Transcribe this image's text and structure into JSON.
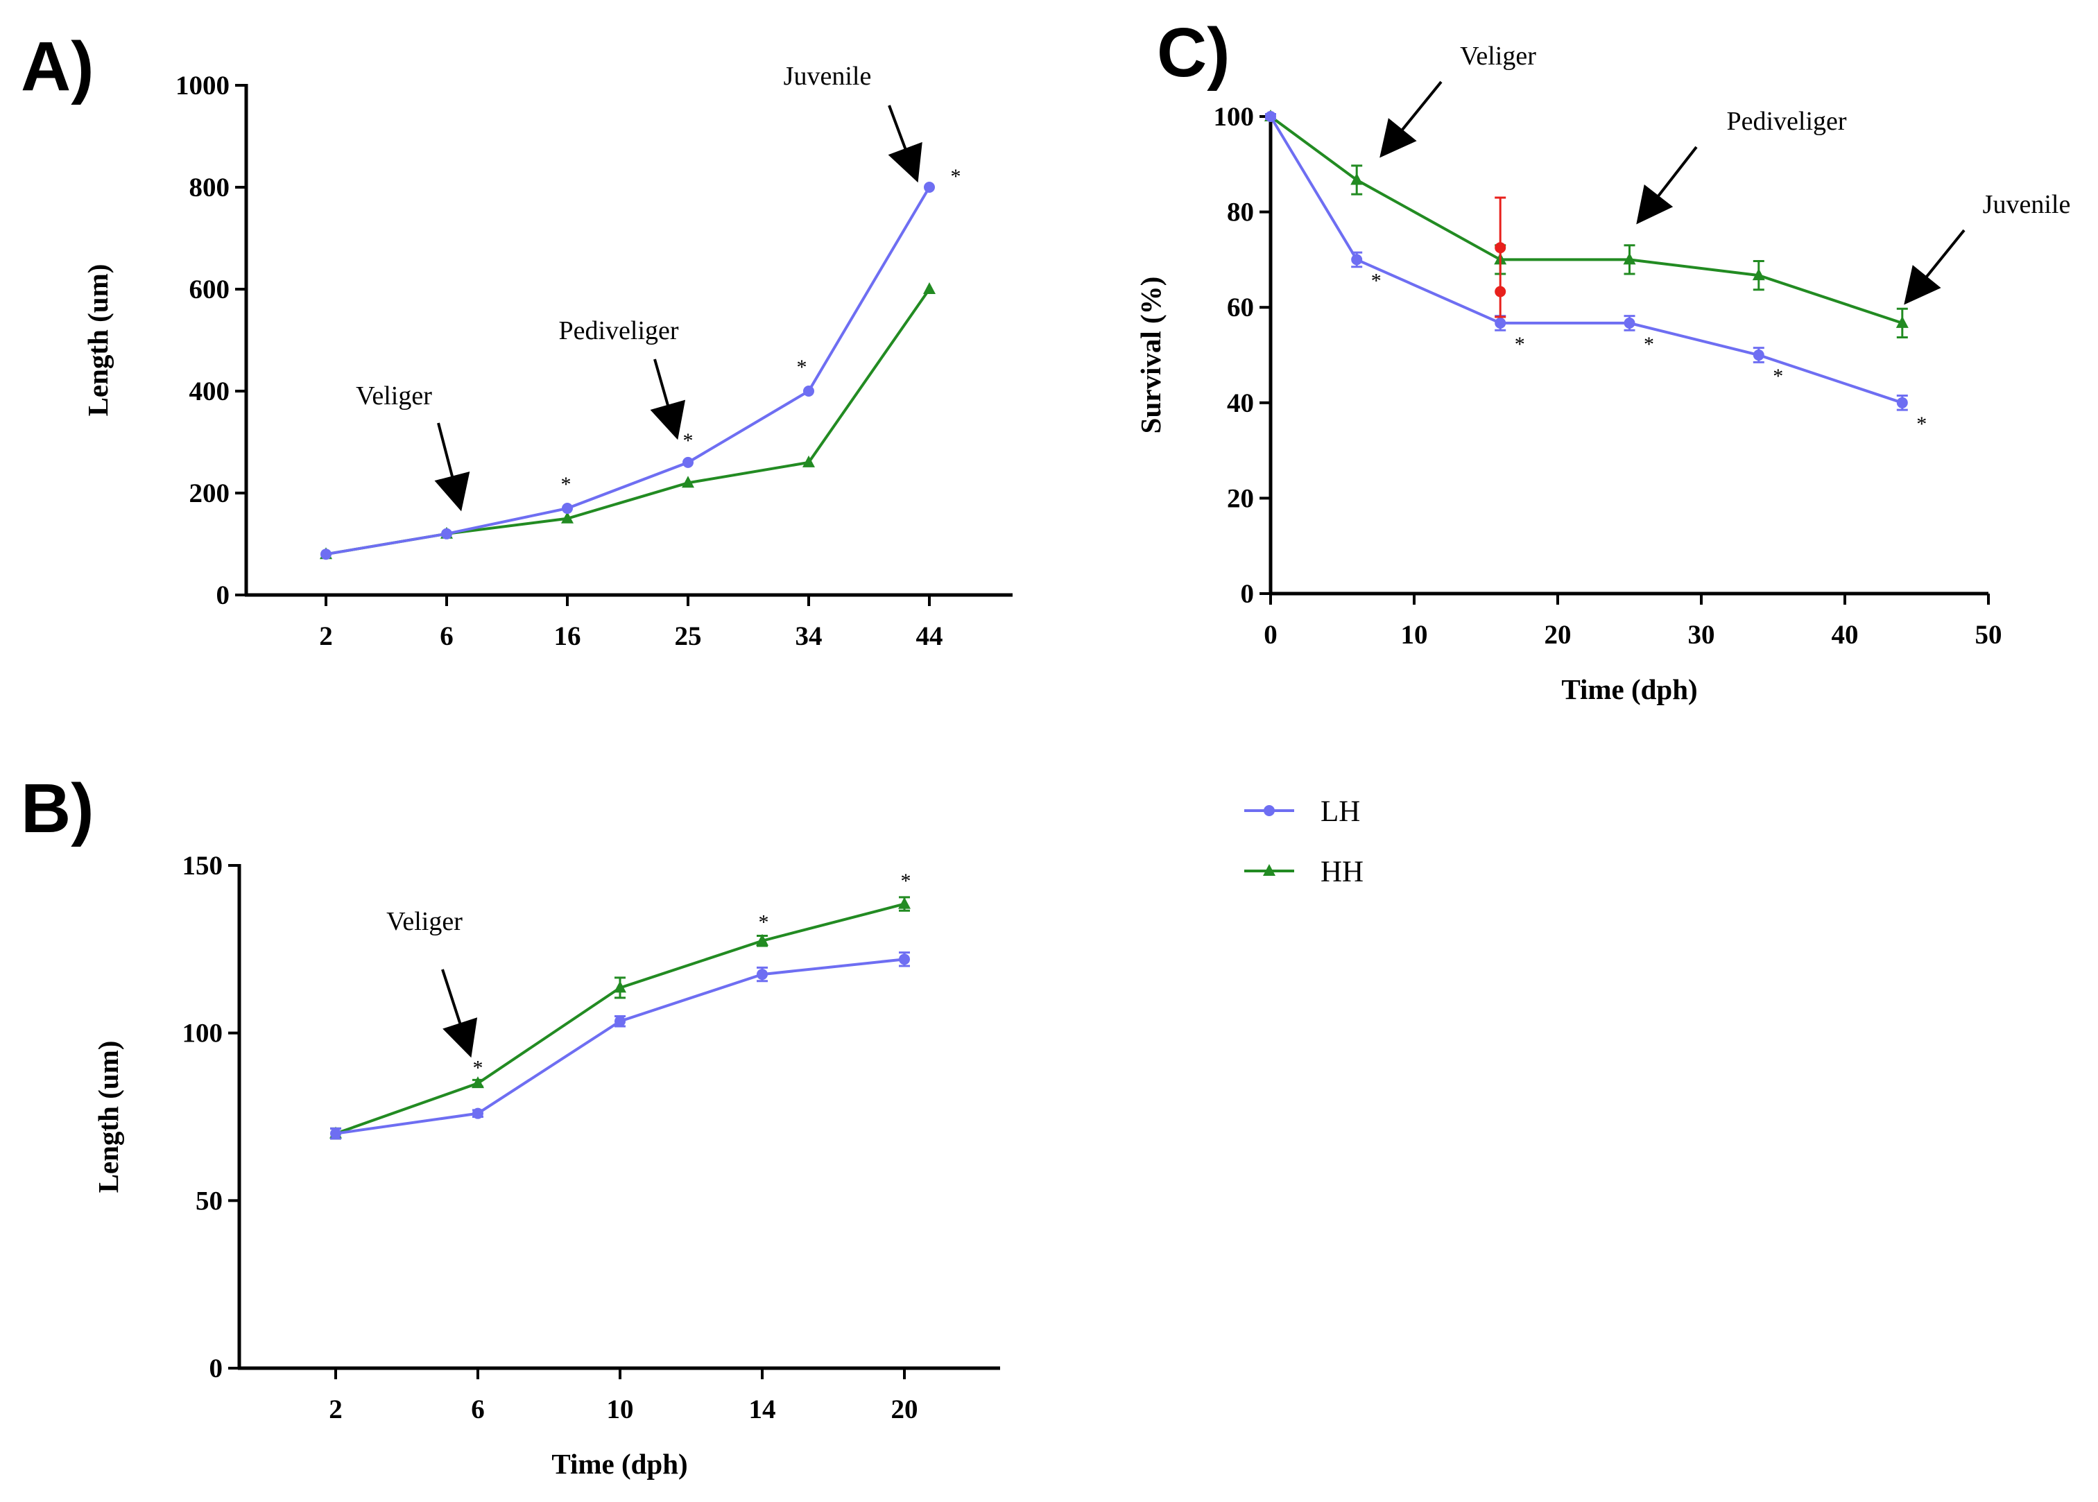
{
  "chart_data": [
    {
      "panel": "A)",
      "type": "line",
      "xlabel": "",
      "ylabel": "Length (um)",
      "categories": [
        "2",
        "6",
        "16",
        "25",
        "34",
        "44"
      ],
      "ylim": [
        0,
        1000
      ],
      "yticks": [
        0,
        200,
        400,
        600,
        800,
        1000
      ],
      "series": [
        {
          "name": "LH",
          "marker": "circle",
          "values": [
            80,
            120,
            170,
            260,
            400,
            800
          ]
        },
        {
          "name": "HH",
          "marker": "triangle",
          "values": [
            80,
            120,
            150,
            220,
            260,
            600
          ]
        }
      ],
      "significance": {
        "symbol": "*",
        "categories": [
          "16",
          "25",
          "34",
          "44"
        ]
      },
      "annotations": [
        {
          "text": "Veliger",
          "category": "6",
          "value": 120
        },
        {
          "text": "Pediveliger",
          "category": "25",
          "value": 260
        },
        {
          "text": "Juvenile",
          "category": "44",
          "value": 800
        }
      ]
    },
    {
      "panel": "B)",
      "type": "line",
      "xlabel": "Time (dph)",
      "ylabel": "Length (um)",
      "categories": [
        "2",
        "6",
        "10",
        "14",
        "20"
      ],
      "ylim": [
        0,
        150
      ],
      "yticks": [
        0,
        50,
        100,
        150
      ],
      "series": [
        {
          "name": "LH",
          "marker": "circle",
          "values": [
            70,
            76,
            103.5,
            117.5,
            122
          ],
          "errors": [
            1.5,
            1,
            1.5,
            2,
            2
          ]
        },
        {
          "name": "HH",
          "marker": "triangle",
          "values": [
            70,
            85,
            113.5,
            127.5,
            138.5
          ],
          "errors": [
            1.5,
            1,
            3,
            1.5,
            2
          ]
        }
      ],
      "significance": {
        "symbol": "*",
        "categories": [
          "6",
          "14",
          "20"
        ]
      },
      "annotations": [
        {
          "text": "Veliger",
          "category": "6",
          "value": 85
        }
      ]
    },
    {
      "panel": "C)",
      "type": "line",
      "xlabel": "Time  (dph)",
      "ylabel": "Survival (%)",
      "xlim": [
        0,
        50
      ],
      "xticks": [
        0,
        10,
        20,
        30,
        40,
        50
      ],
      "ylim": [
        0,
        100
      ],
      "yticks": [
        0,
        20,
        40,
        60,
        80,
        100
      ],
      "series": [
        {
          "name": "LH",
          "marker": "circle",
          "x": [
            0,
            6,
            16,
            25,
            34,
            44
          ],
          "values": [
            100,
            70,
            56.7,
            56.7,
            50,
            40
          ],
          "errors": [
            0.5,
            1.5,
            1.5,
            1.5,
            1.5,
            1.5
          ]
        },
        {
          "name": "HH",
          "marker": "triangle",
          "x": [
            0,
            6,
            16,
            25,
            34,
            44
          ],
          "values": [
            100,
            86.7,
            70,
            70,
            66.7,
            56.7
          ],
          "errors": [
            0.5,
            3,
            3,
            3,
            3,
            3
          ]
        }
      ],
      "outlier": {
        "x": 16,
        "values": [
          72.5,
          63.3
        ],
        "error_range": [
          58,
          83
        ],
        "color": "#e8201c"
      },
      "significance": {
        "symbol": "*",
        "x": [
          6,
          16,
          25,
          34,
          44
        ]
      },
      "annotations": [
        {
          "text": "Veliger",
          "x": 6,
          "value": 86.7
        },
        {
          "text": "Pediveliger",
          "x": 25,
          "value": 70
        },
        {
          "text": "Juvenile",
          "x": 44,
          "value": 56.7
        }
      ]
    }
  ],
  "legend": {
    "entries": [
      {
        "name": "LH",
        "color": "#6e6ef2",
        "marker": "circle"
      },
      {
        "name": "HH",
        "color": "#228b22",
        "marker": "triangle"
      }
    ]
  },
  "colors": {
    "LH": "#6e6ef2",
    "HH": "#228b22",
    "axis": "#000000",
    "outlier": "#e8201c"
  }
}
